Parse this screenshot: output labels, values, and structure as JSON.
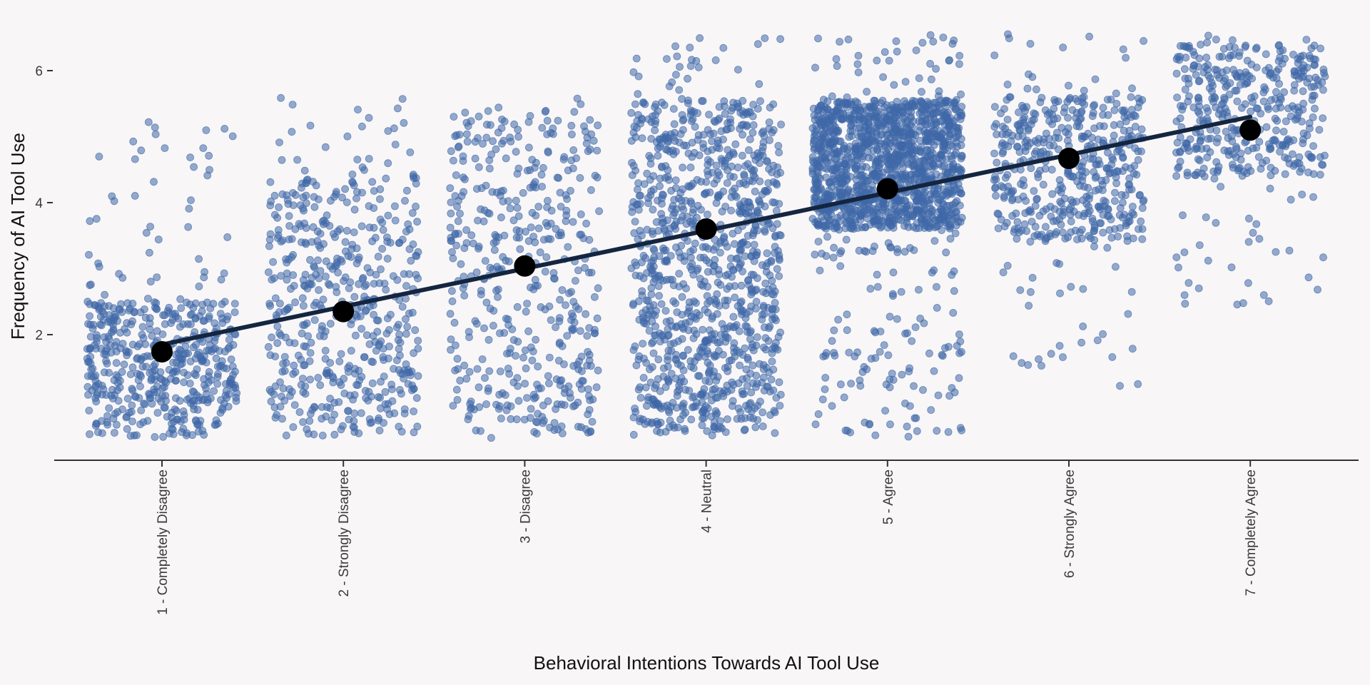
{
  "chart_data": {
    "type": "scatter",
    "title": "",
    "xlabel": "Behavioral Intentions Towards AI Tool Use",
    "ylabel": "Frequency of AI Tool Use",
    "categories": [
      "1 - Completely Disagree",
      "2 - Strongly Disagree",
      "3 - Disagree",
      "4 - Neutral",
      "5 - Agree",
      "6 - Strongly Agree",
      "7 - Completely Agree"
    ],
    "category_values": [
      1,
      2,
      3,
      4,
      5,
      6,
      7
    ],
    "xlim": [
      0.4,
      7.6
    ],
    "ylim": [
      0.0,
      6.6
    ],
    "yticks": [
      2,
      4,
      6
    ],
    "grid": false,
    "legend": "none",
    "points_jittered": true,
    "point_color": "#3f68a8",
    "mean_color": "#000000",
    "trend_color": "#14253f",
    "groups": [
      {
        "category": "1 - Completely Disagree",
        "n": 520,
        "y_range": [
          0.45,
          5.3
        ],
        "dense_range": [
          0.45,
          2.5
        ],
        "mean": 1.74
      },
      {
        "category": "2 - Strongly Disagree",
        "n": 520,
        "y_range": [
          0.45,
          5.6
        ],
        "dense_range": [
          0.45,
          4.4
        ],
        "mean": 2.35
      },
      {
        "category": "3 - Disagree",
        "n": 460,
        "y_range": [
          0.4,
          5.6
        ],
        "dense_range": [
          0.5,
          5.5
        ],
        "mean": 3.04
      },
      {
        "category": "4 - Neutral",
        "n": 1050,
        "y_range": [
          0.45,
          6.5
        ],
        "dense_range": [
          0.5,
          5.55
        ],
        "mean": 3.6
      },
      {
        "category": "5 - Agree",
        "n": 1500,
        "y_range": [
          0.45,
          6.55
        ],
        "dense_range": [
          3.6,
          5.55
        ],
        "mean": 4.21
      },
      {
        "category": "6 - Strongly Agree",
        "n": 500,
        "y_range": [
          1.1,
          6.6
        ],
        "dense_range": [
          3.4,
          5.6
        ],
        "mean": 4.67
      },
      {
        "category": "7 - Completely Agree",
        "n": 420,
        "y_range": [
          2.45,
          6.6
        ],
        "dense_range": [
          4.4,
          6.4
        ],
        "mean": 5.1
      }
    ],
    "trend_line": {
      "x": [
        1,
        7
      ],
      "y": [
        1.85,
        5.3
      ]
    }
  }
}
